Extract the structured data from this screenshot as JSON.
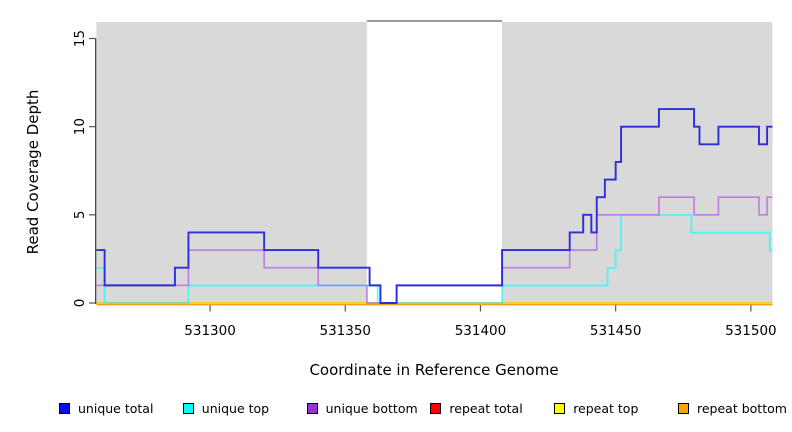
{
  "chart_data": {
    "type": "line",
    "title": "",
    "xlabel": "Coordinate in Reference Genome",
    "ylabel": "Read Coverage Depth",
    "xlim": [
      531258,
      531508
    ],
    "ylim": [
      0,
      15
    ],
    "x_ticks": [
      "531300",
      "531350",
      "531400",
      "531450",
      "531500"
    ],
    "x_tick_values": [
      531300,
      531350,
      531400,
      531450,
      531500
    ],
    "y_ticks": [
      "0",
      "5",
      "10",
      "15"
    ],
    "y_tick_values": [
      0,
      5,
      10,
      15
    ],
    "grid": "off",
    "plot_bg_color": "#d9d9d9",
    "page_bg_color": "#ffffff",
    "axis_color": "#333333",
    "tick_color": "#555555",
    "highlight_band": {
      "x0": 531358,
      "x1": 531408,
      "color": "#ffffff",
      "top_border_color": "#9a9a9a"
    },
    "legend_position": "bottom",
    "draw_order": [
      "repeat total",
      "repeat top",
      "repeat bottom",
      "unique top",
      "unique bottom",
      "unique total"
    ],
    "series": [
      {
        "name": "unique total",
        "key": "unique-total",
        "legend_color": "#0b0bf0",
        "line_color": "#2c2cd8",
        "opacity": 1,
        "width": 1.9,
        "offset": 0,
        "steps": [
          [
            531258,
            3
          ],
          [
            531261,
            1
          ],
          [
            531287,
            2
          ],
          [
            531292,
            4
          ],
          [
            531320,
            3
          ],
          [
            531340,
            2
          ],
          [
            531359,
            1
          ],
          [
            531363,
            0
          ],
          [
            531369,
            1
          ],
          [
            531408,
            3
          ],
          [
            531433,
            4
          ],
          [
            531438,
            5
          ],
          [
            531441,
            4
          ],
          [
            531443,
            6
          ],
          [
            531446,
            7
          ],
          [
            531450,
            8
          ],
          [
            531452,
            10
          ],
          [
            531466,
            11
          ],
          [
            531479,
            10
          ],
          [
            531481,
            9
          ],
          [
            531488,
            10
          ],
          [
            531503,
            9
          ],
          [
            531506,
            10
          ],
          [
            531508,
            10
          ]
        ]
      },
      {
        "name": "unique top",
        "key": "unique-top",
        "legend_color": "#00ffff",
        "line_color": "#00ffff",
        "opacity": 0.6,
        "width": 1.9,
        "offset": 0.2,
        "steps": [
          [
            531258,
            2
          ],
          [
            531261,
            0
          ],
          [
            531292,
            1
          ],
          [
            531362,
            0
          ],
          [
            531408,
            1
          ],
          [
            531447,
            2
          ],
          [
            531450,
            3
          ],
          [
            531452,
            5
          ],
          [
            531478,
            4
          ],
          [
            531507,
            3
          ],
          [
            531508,
            3
          ]
        ]
      },
      {
        "name": "unique bottom",
        "key": "unique-bottom",
        "legend_color": "#9a32cd",
        "line_color": "#bb7de0",
        "opacity": 1,
        "width": 1.6,
        "offset": 0,
        "steps": [
          [
            531258,
            1
          ],
          [
            531292,
            3
          ],
          [
            531320,
            2
          ],
          [
            531340,
            1
          ],
          [
            531358,
            0
          ],
          [
            531369,
            1
          ],
          [
            531408,
            2
          ],
          [
            531433,
            3
          ],
          [
            531443,
            5
          ],
          [
            531466,
            6
          ],
          [
            531479,
            5
          ],
          [
            531488,
            6
          ],
          [
            531503,
            5
          ],
          [
            531506,
            6
          ],
          [
            531508,
            6
          ]
        ]
      },
      {
        "name": "repeat total",
        "key": "repeat-total",
        "legend_color": "#ff0000",
        "line_color": "#e00000",
        "opacity": 1,
        "width": 1.6,
        "offset": 0,
        "steps": [
          [
            531258,
            0
          ],
          [
            531508,
            0
          ]
        ]
      },
      {
        "name": "repeat top",
        "key": "repeat-top",
        "legend_color": "#ffff00",
        "line_color": "#ffff00",
        "opacity": 1,
        "width": 1.6,
        "offset": 0.2,
        "steps": [
          [
            531258,
            0
          ],
          [
            531508,
            0
          ]
        ]
      },
      {
        "name": "repeat bottom",
        "key": "repeat-bottom",
        "legend_color": "#ffa500",
        "line_color": "#ff9d0a",
        "opacity": 1,
        "width": 1.8,
        "offset": 1.5,
        "steps": [
          [
            531258,
            0
          ],
          [
            531508,
            0
          ]
        ]
      }
    ]
  }
}
